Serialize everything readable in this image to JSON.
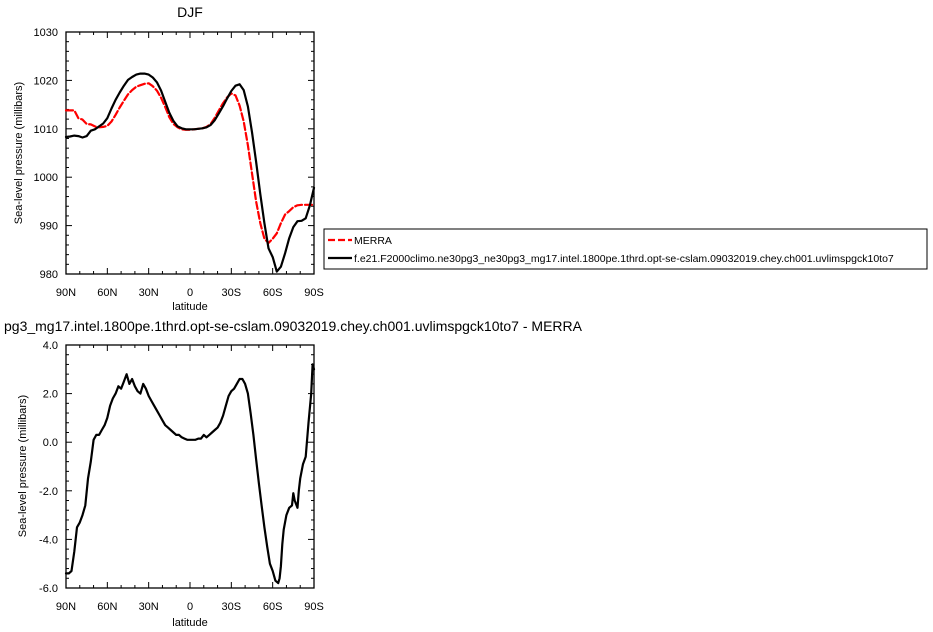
{
  "chart_data": [
    {
      "type": "line",
      "title": "DJF",
      "xlabel": "latitude",
      "ylabel": "Sea-level pressure (millibars)",
      "xlim": [
        90,
        -90
      ],
      "ylim": [
        980,
        1030
      ],
      "xticks": [
        {
          "value": 90,
          "label": "90N"
        },
        {
          "value": 60,
          "label": "60N"
        },
        {
          "value": 30,
          "label": "30N"
        },
        {
          "value": 0,
          "label": "0"
        },
        {
          "value": -30,
          "label": "30S"
        },
        {
          "value": -60,
          "label": "60S"
        },
        {
          "value": -90,
          "label": "90S"
        }
      ],
      "yticks": [
        980,
        990,
        1000,
        1010,
        1020,
        1030
      ],
      "legend": "right",
      "series": [
        {
          "name": "MERRA",
          "color": "#ff0000",
          "dashed": true,
          "x": [
            90,
            87,
            84,
            81,
            78,
            75,
            72,
            69,
            66,
            63,
            60,
            57,
            54,
            51,
            48,
            45,
            42,
            39,
            36,
            33,
            30,
            27,
            24,
            21,
            18,
            15,
            12,
            9,
            6,
            3,
            0,
            -3,
            -6,
            -9,
            -12,
            -15,
            -18,
            -21,
            -24,
            -27,
            -30,
            -33,
            -36,
            -39,
            -42,
            -45,
            -48,
            -51,
            -54,
            -57,
            -60,
            -63,
            -66,
            -69,
            -72,
            -75,
            -78,
            -81,
            -84,
            -87,
            -90
          ],
          "values": [
            1013.8,
            1013.8,
            1013.8,
            1012.2,
            1011.9,
            1011.0,
            1010.9,
            1010.5,
            1010.3,
            1010.4,
            1010.6,
            1011.5,
            1012.9,
            1014.4,
            1015.8,
            1017.1,
            1018.0,
            1018.7,
            1019.0,
            1019.3,
            1019.4,
            1018.8,
            1017.9,
            1016.4,
            1014.5,
            1012.4,
            1011.0,
            1010.3,
            1009.9,
            1009.8,
            1009.8,
            1009.9,
            1010.0,
            1010.1,
            1010.4,
            1011.0,
            1012.3,
            1013.8,
            1015.3,
            1016.5,
            1017.3,
            1016.9,
            1014.8,
            1011.5,
            1006.6,
            1000.8,
            995.0,
            990.5,
            987.3,
            986.4,
            987.3,
            988.4,
            990.5,
            992.3,
            993.0,
            993.8,
            994.2,
            994.3,
            994.3,
            994.3,
            994.3
          ]
        },
        {
          "name": "f.e21.F2000climo.ne30pg3_ne30pg3_mg17.intel.1800pe.1thrd.opt-se-cslam.09032019.chey.ch001.uvlimspgck10to7",
          "color": "#000000",
          "dashed": false,
          "x": [
            90,
            87,
            84,
            81,
            78,
            75,
            72,
            69,
            66,
            63,
            60,
            57,
            54,
            51,
            48,
            45,
            42,
            39,
            36,
            33,
            30,
            27,
            24,
            21,
            18,
            15,
            12,
            9,
            6,
            3,
            0,
            -3,
            -6,
            -9,
            -12,
            -15,
            -18,
            -21,
            -24,
            -27,
            -30,
            -33,
            -36,
            -39,
            -42,
            -45,
            -48,
            -51,
            -54,
            -57,
            -60,
            -63,
            -66,
            -69,
            -72,
            -75,
            -78,
            -81,
            -84,
            -87,
            -90
          ],
          "values": [
            1008.3,
            1008.4,
            1008.6,
            1008.5,
            1008.2,
            1008.5,
            1009.6,
            1009.9,
            1010.5,
            1011.1,
            1012.2,
            1014.2,
            1016.0,
            1017.5,
            1018.9,
            1020.1,
            1020.7,
            1021.2,
            1021.4,
            1021.4,
            1021.2,
            1020.6,
            1019.6,
            1017.9,
            1015.6,
            1013.3,
            1011.6,
            1010.5,
            1010.1,
            1009.9,
            1009.9,
            1009.9,
            1010.0,
            1010.1,
            1010.3,
            1010.8,
            1011.8,
            1013.2,
            1014.7,
            1016.3,
            1017.8,
            1018.9,
            1019.2,
            1018.0,
            1014.6,
            1009.3,
            1003.2,
            996.5,
            990.5,
            985.3,
            983.5,
            980.5,
            981.5,
            984.3,
            987.4,
            989.7,
            990.9,
            991.0,
            991.5,
            994.2,
            997.8
          ]
        }
      ]
    },
    {
      "type": "line",
      "title": "pg3_mg17.intel.1800pe.1thrd.opt-se-cslam.09032019.chey.ch001.uvlimspgck10to7 - MERRA",
      "xlabel": "latitude",
      "ylabel": "Sea-level pressure (millibars)",
      "xlim": [
        90,
        -90
      ],
      "ylim": [
        -6.0,
        4.0
      ],
      "xticks": [
        {
          "value": 90,
          "label": "90N"
        },
        {
          "value": 60,
          "label": "60N"
        },
        {
          "value": 30,
          "label": "30N"
        },
        {
          "value": 0,
          "label": "0"
        },
        {
          "value": -30,
          "label": "30S"
        },
        {
          "value": -60,
          "label": "60S"
        },
        {
          "value": -90,
          "label": "90S"
        }
      ],
      "yticks": [
        "-6.0",
        "-4.0",
        "-2.0",
        "0.0",
        "2.0",
        "4.0"
      ],
      "series": [
        {
          "color": "#000000",
          "x": [
            90,
            88,
            86,
            84,
            82,
            80,
            78,
            76,
            74,
            72,
            70,
            68,
            66,
            64,
            62,
            60,
            58,
            56,
            54,
            52,
            50,
            48,
            46,
            44,
            42,
            40,
            38,
            36,
            34,
            32,
            30,
            28,
            26,
            24,
            22,
            20,
            18,
            16,
            14,
            12,
            10,
            8,
            6,
            4,
            2,
            0,
            -2,
            -4,
            -6,
            -8,
            -10,
            -12,
            -14,
            -16,
            -18,
            -20,
            -22,
            -24,
            -26,
            -28,
            -30,
            -32,
            -34,
            -36,
            -38,
            -40,
            -42,
            -44,
            -46,
            -48,
            -50,
            -52,
            -54,
            -56,
            -58,
            -60,
            -62,
            -64,
            -65,
            -66,
            -67,
            -68,
            -70,
            -72,
            -74,
            -75,
            -76,
            -78,
            -79,
            -80,
            -82,
            -84,
            -86,
            -88,
            -89,
            -90
          ],
          "values": [
            -5.4,
            -5.4,
            -5.3,
            -4.5,
            -3.5,
            -3.3,
            -3.0,
            -2.6,
            -1.5,
            -0.8,
            0.1,
            0.3,
            0.3,
            0.5,
            0.7,
            1.0,
            1.5,
            1.8,
            2.0,
            2.3,
            2.2,
            2.5,
            2.8,
            2.4,
            2.6,
            2.3,
            2.1,
            2.0,
            2.4,
            2.2,
            1.9,
            1.7,
            1.5,
            1.3,
            1.1,
            0.9,
            0.7,
            0.6,
            0.5,
            0.4,
            0.3,
            0.3,
            0.2,
            0.15,
            0.1,
            0.1,
            0.1,
            0.1,
            0.15,
            0.15,
            0.3,
            0.2,
            0.3,
            0.4,
            0.5,
            0.6,
            0.8,
            1.1,
            1.5,
            1.9,
            2.1,
            2.2,
            2.4,
            2.6,
            2.6,
            2.4,
            2.0,
            1.2,
            0.3,
            -0.7,
            -1.7,
            -2.6,
            -3.5,
            -4.3,
            -5.0,
            -5.3,
            -5.7,
            -5.8,
            -5.6,
            -5.1,
            -4.2,
            -3.6,
            -3.0,
            -2.7,
            -2.6,
            -2.1,
            -2.4,
            -2.7,
            -2.0,
            -1.5,
            -0.9,
            -0.6,
            0.8,
            2.0,
            3.2,
            3.0
          ]
        }
      ]
    }
  ]
}
